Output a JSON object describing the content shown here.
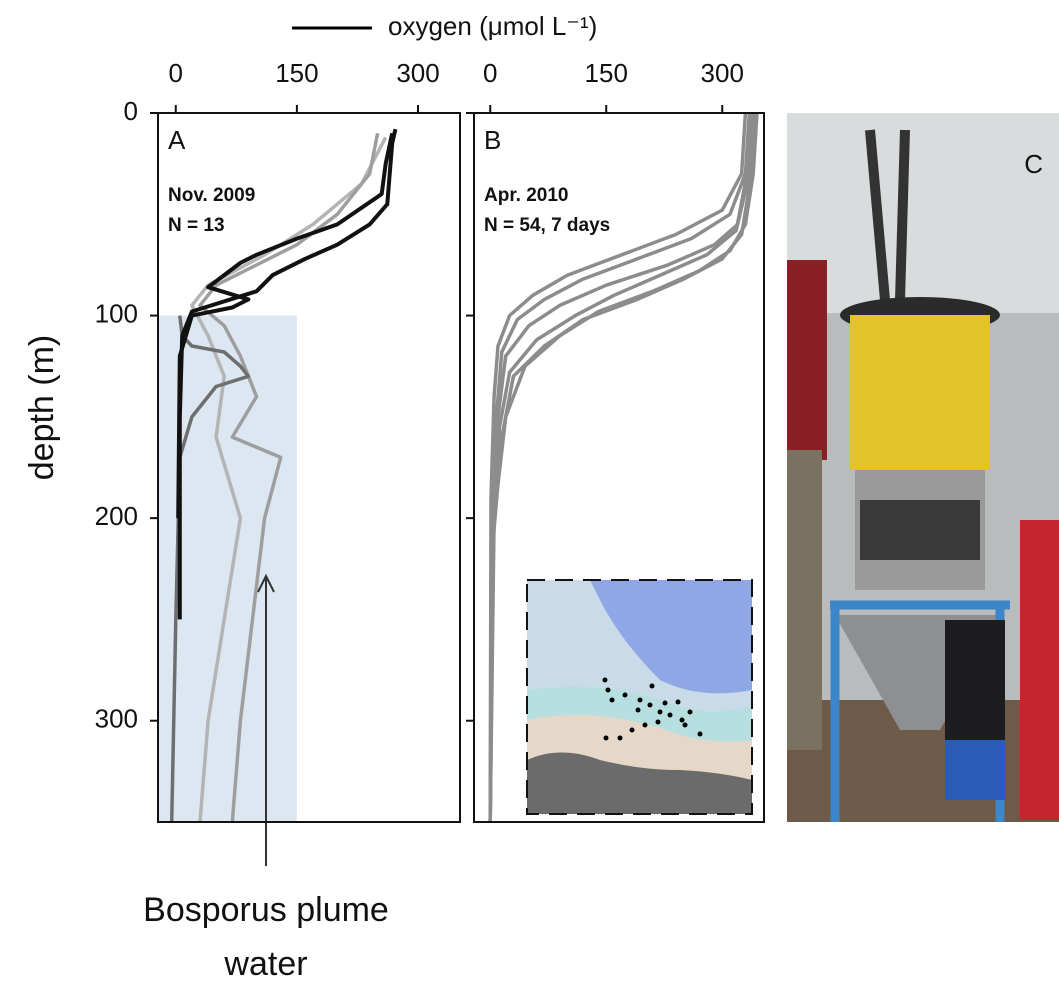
{
  "chart_data": [
    {
      "type": "line",
      "panel": "A",
      "ylabel": "depth (m)",
      "legend": {
        "label": "oxygen (μmol L⁻¹)",
        "color": "#000000"
      },
      "annotations": [
        "Nov. 2009",
        "N = 13"
      ],
      "xlim": [
        -22,
        352
      ],
      "xticks": [
        0,
        150,
        300
      ],
      "ylim": [
        0,
        350
      ],
      "yticks": [
        0,
        100,
        200,
        300
      ],
      "shade": {
        "xlim": [
          -22,
          150
        ],
        "ylim": [
          100,
          350
        ],
        "color": "#dce7f2"
      },
      "series": [
        {
          "color": "#b4b4b4",
          "x": [
            260,
            230,
            170,
            110,
            40,
            20,
            40,
            60,
            50,
            80,
            60,
            40,
            30
          ],
          "y": [
            12,
            35,
            55,
            70,
            85,
            95,
            110,
            130,
            160,
            200,
            250,
            300,
            350
          ]
        },
        {
          "color": "#9e9e9e",
          "x": [
            250,
            240,
            200,
            150,
            100,
            50,
            30,
            60,
            80,
            100,
            70,
            130,
            110,
            95,
            80,
            70
          ],
          "y": [
            10,
            30,
            50,
            65,
            75,
            85,
            95,
            105,
            120,
            140,
            160,
            170,
            200,
            250,
            300,
            350
          ]
        },
        {
          "color": "#6e6e6e",
          "x": [
            5,
            8,
            20,
            60,
            80,
            90,
            50,
            20,
            5,
            0,
            -5
          ],
          "y": [
            100,
            110,
            115,
            118,
            125,
            130,
            135,
            150,
            170,
            250,
            350
          ]
        },
        {
          "color": "#111111",
          "x": [
            272,
            268,
            265,
            262,
            240,
            200,
            160,
            120,
            100,
            60,
            20,
            8,
            5,
            5,
            5
          ],
          "y": [
            8,
            15,
            30,
            45,
            55,
            65,
            72,
            80,
            88,
            93,
            98,
            110,
            150,
            200,
            250
          ]
        },
        {
          "color": "#111111",
          "x": [
            268,
            260,
            255,
            200,
            150,
            100,
            80,
            60,
            40,
            90,
            70,
            20,
            5,
            3
          ],
          "y": [
            10,
            25,
            40,
            55,
            62,
            70,
            74,
            80,
            86,
            92,
            96,
            100,
            120,
            200
          ]
        }
      ]
    },
    {
      "type": "line",
      "panel": "B",
      "annotations": [
        "Apr. 2010",
        "N = 54, 7 days"
      ],
      "xlim": [
        -21,
        354
      ],
      "xticks": [
        0,
        150,
        300
      ],
      "ylim": [
        0,
        350
      ],
      "yticks": [
        0,
        100,
        200,
        300
      ],
      "series": [
        {
          "color": "#8c8c8c",
          "x": [
            340,
            335,
            320,
            290,
            230,
            150,
            90,
            50,
            20,
            10,
            3,
            0
          ],
          "y": [
            0,
            30,
            55,
            65,
            75,
            85,
            95,
            105,
            120,
            150,
            200,
            350
          ]
        },
        {
          "color": "#8c8c8c",
          "x": [
            335,
            330,
            310,
            260,
            190,
            120,
            70,
            35,
            15,
            8,
            2,
            0
          ],
          "y": [
            0,
            30,
            50,
            62,
            72,
            82,
            92,
            102,
            118,
            150,
            200,
            350
          ]
        },
        {
          "color": "#8c8c8c",
          "x": [
            345,
            340,
            330,
            310,
            270,
            210,
            140,
            90,
            45,
            20,
            5,
            0
          ],
          "y": [
            0,
            30,
            55,
            68,
            78,
            88,
            98,
            110,
            125,
            150,
            200,
            350
          ]
        },
        {
          "color": "#8c8c8c",
          "x": [
            338,
            332,
            318,
            280,
            220,
            160,
            110,
            60,
            25,
            12,
            4,
            0
          ],
          "y": [
            0,
            30,
            58,
            70,
            80,
            90,
            100,
            112,
            128,
            155,
            210,
            350
          ]
        },
        {
          "color": "#8c8c8c",
          "x": [
            330,
            325,
            300,
            240,
            170,
            100,
            55,
            25,
            10,
            5,
            1,
            0
          ],
          "y": [
            0,
            30,
            48,
            60,
            70,
            80,
            90,
            100,
            115,
            140,
            190,
            350
          ]
        },
        {
          "color": "#8c8c8c",
          "x": [
            342,
            338,
            325,
            300,
            250,
            190,
            120,
            70,
            30,
            15,
            4,
            0
          ],
          "y": [
            0,
            30,
            60,
            72,
            82,
            92,
            102,
            115,
            130,
            160,
            210,
            350
          ]
        }
      ]
    }
  ],
  "plume_label": [
    "Bosporus plume",
    "water"
  ],
  "panel_c": {
    "label": "C"
  }
}
